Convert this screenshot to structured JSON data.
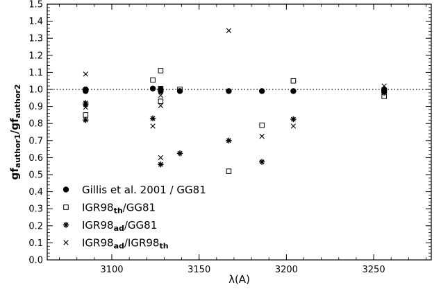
{
  "chart_data": {
    "type": "scatter",
    "xlim": [
      3063,
      3283
    ],
    "ylim": [
      0.0,
      1.5
    ],
    "x_ticks": [
      3100,
      3150,
      3200,
      3250
    ],
    "x_tick_labels": [
      "3100",
      "3150",
      "3200",
      "3250"
    ],
    "y_ticks": [
      0.0,
      0.1,
      0.2,
      0.3,
      0.4,
      0.5,
      0.6,
      0.7,
      0.8,
      0.9,
      1.0,
      1.1,
      1.2,
      1.3,
      1.4,
      1.5
    ],
    "y_tick_labels": [
      "0.0",
      "0.1",
      "0.2",
      "0.3",
      "0.4",
      "0.5",
      "0.6",
      "0.7",
      "0.8",
      "0.9",
      "1.0",
      "1.1",
      "1.2",
      "1.3",
      "1.4",
      "1.5"
    ],
    "xlabel": "λ(A)",
    "ylabel": {
      "base": "gf",
      "sub1": "author1",
      "sep": "/gf",
      "sub2": "author2"
    },
    "reference_line": {
      "y": 1.0,
      "style": "dotted"
    },
    "grid": false,
    "legend_position": "lower-left",
    "series": [
      {
        "label": {
          "text": "Gillis et al. 2001 / GG81"
        },
        "marker": "filled-circle",
        "points": [
          [
            3085,
            1.0
          ],
          [
            3085,
            0.995
          ],
          [
            3085,
            0.99
          ],
          [
            3123.5,
            1.005
          ],
          [
            3128,
            1.0
          ],
          [
            3128,
            0.99
          ],
          [
            3139,
            0.99
          ],
          [
            3167,
            0.99
          ],
          [
            3186,
            0.99
          ],
          [
            3204,
            0.99
          ],
          [
            3256,
            1.0
          ],
          [
            3256,
            0.99
          ]
        ]
      },
      {
        "label": {
          "pre": "IGR98",
          "sub": "th",
          "post": "/GG81"
        },
        "marker": "open-square",
        "points": [
          [
            3085,
            0.85
          ],
          [
            3123.5,
            1.055
          ],
          [
            3128,
            1.11
          ],
          [
            3128,
            1.005
          ],
          [
            3128,
            0.93
          ],
          [
            3139,
            1.0
          ],
          [
            3167,
            0.52
          ],
          [
            3186,
            0.79
          ],
          [
            3204,
            1.05
          ],
          [
            3256,
            0.96
          ]
        ]
      },
      {
        "label": {
          "pre": "IGR98",
          "sub": "ad",
          "post": "/GG81"
        },
        "marker": "asterisk",
        "points": [
          [
            3085,
            0.92
          ],
          [
            3085,
            0.91
          ],
          [
            3085,
            0.82
          ],
          [
            3123.5,
            0.83
          ],
          [
            3128,
            0.56
          ],
          [
            3139,
            0.625
          ],
          [
            3167,
            0.7
          ],
          [
            3186,
            0.575
          ],
          [
            3204,
            0.825
          ],
          [
            3256,
            0.98
          ]
        ]
      },
      {
        "label": {
          "pre": "IGR98",
          "sub": "ad",
          "mid": "/IGR98",
          "sub2": "th"
        },
        "marker": "cross",
        "points": [
          [
            3085,
            1.09
          ],
          [
            3085,
            0.895
          ],
          [
            3123.5,
            0.785
          ],
          [
            3128,
            0.965
          ],
          [
            3128,
            0.905
          ],
          [
            3128,
            0.6
          ],
          [
            3167,
            1.345
          ],
          [
            3186,
            0.725
          ],
          [
            3204,
            0.785
          ],
          [
            3256,
            1.02
          ]
        ]
      }
    ]
  }
}
